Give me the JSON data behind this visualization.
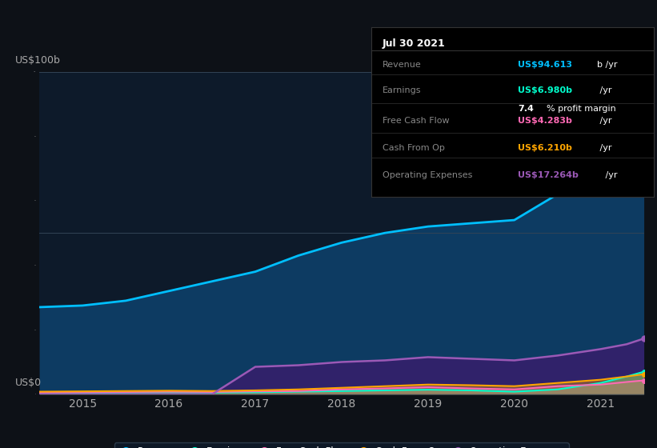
{
  "bg_color": "#0d1117",
  "plot_bg_color": "#0d1a2a",
  "title_box_bg": "#000000",
  "years": [
    2014.5,
    2015.0,
    2015.5,
    2016.0,
    2016.5,
    2017.0,
    2017.5,
    2018.0,
    2018.5,
    2019.0,
    2019.5,
    2020.0,
    2020.5,
    2021.0,
    2021.3,
    2021.5
  ],
  "revenue": [
    27,
    27.5,
    29,
    32,
    35,
    38,
    43,
    47,
    50,
    52,
    53,
    54,
    62,
    75,
    88,
    94.6
  ],
  "earnings": [
    0.3,
    0.4,
    0.5,
    0.6,
    0.5,
    0.6,
    0.8,
    1.0,
    1.2,
    1.4,
    1.2,
    0.8,
    1.5,
    3.5,
    5.5,
    6.98
  ],
  "free_cash_flow": [
    0.5,
    0.6,
    0.7,
    0.8,
    0.7,
    0.9,
    1.0,
    1.5,
    1.8,
    2.2,
    1.8,
    1.5,
    2.5,
    3.0,
    3.8,
    4.283
  ],
  "cash_from_op": [
    0.8,
    0.9,
    1.0,
    1.1,
    1.0,
    1.2,
    1.5,
    2.0,
    2.5,
    3.0,
    2.8,
    2.5,
    3.5,
    4.5,
    5.5,
    6.21
  ],
  "op_expenses": [
    0,
    0,
    0,
    0,
    0,
    8.5,
    9.0,
    10.0,
    10.5,
    11.5,
    11.0,
    10.5,
    12.0,
    14.0,
    15.5,
    17.264
  ],
  "revenue_color": "#00bfff",
  "earnings_color": "#00ffcc",
  "free_cash_flow_color": "#ff69b4",
  "cash_from_op_color": "#ffa500",
  "op_expenses_color": "#9b59b6",
  "revenue_fill": "#0d4a7a",
  "op_expenses_fill": "#3d1a6e",
  "ylim": [
    0,
    100
  ],
  "ylabel": "US$100b",
  "ylabel0": "US$0",
  "x_ticks": [
    2015,
    2016,
    2017,
    2018,
    2019,
    2020,
    2021
  ],
  "tooltip_date": "Jul 30 2021",
  "tooltip_revenue_label": "Revenue",
  "tooltip_revenue_val": "US$94.613b /yr",
  "tooltip_earnings_label": "Earnings",
  "tooltip_earnings_val": "US$6.980b /yr",
  "tooltip_margin": "7.4% profit margin",
  "tooltip_fcf_label": "Free Cash Flow",
  "tooltip_fcf_val": "US$4.283b /yr",
  "tooltip_cop_label": "Cash From Op",
  "tooltip_cop_val": "US$6.210b /yr",
  "tooltip_opex_label": "Operating Expenses",
  "tooltip_opex_val": "US$17.264b /yr",
  "legend_items": [
    "Revenue",
    "Earnings",
    "Free Cash Flow",
    "Cash From Op",
    "Operating Expenses"
  ],
  "legend_colors": [
    "#00bfff",
    "#00ffcc",
    "#ff69b4",
    "#ffa500",
    "#9b59b6"
  ]
}
